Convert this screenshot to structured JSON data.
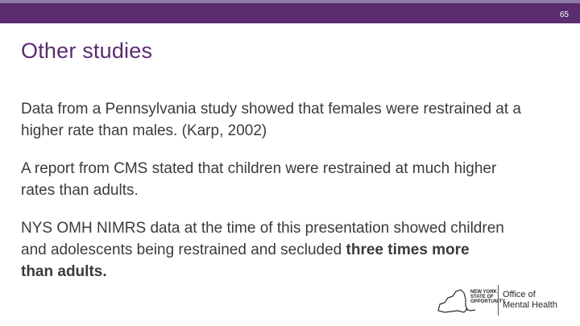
{
  "slide": {
    "number": "65",
    "title": "Other studies",
    "paragraphs": [
      {
        "text": "Data from a Pennsylvania study showed that females were restrained at a higher rate than males. (Karp, 2002)"
      },
      {
        "text": "A report from CMS stated that children were restrained at much higher rates than adults."
      },
      {
        "text_before": "NYS OMH NIMRS data at the time of this presentation showed children and adolescents being restrained and secluded ",
        "text_bold": "three times more than adults."
      }
    ]
  },
  "footer": {
    "state_logo_line1": "NEW YORK",
    "state_logo_line2": "STATE OF",
    "state_logo_line3": "OPPORTUNITY.",
    "office_line1": "Office of",
    "office_line2": "Mental Health",
    "state_icon": "ny-state-outline-icon"
  },
  "colors": {
    "brand_purple": "#5b2c6f",
    "bar_accent": "#8f7ca8",
    "body_text": "#3b3b3b"
  }
}
